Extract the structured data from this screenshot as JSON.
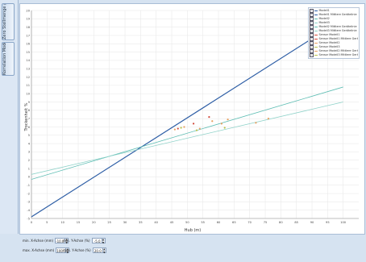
{
  "tabs": [
    {
      "label": "Zero Stellmenge / Trajan Stellmenge"
    },
    {
      "label": "Korrelation Modell 1 / 2"
    }
  ],
  "controls": {
    "x_min": {
      "label": "min. X-Achse (mm)",
      "value": "-10.0"
    },
    "x_max": {
      "label": "max. X-Achse (mm)",
      "value": "100.0"
    },
    "y_min": {
      "label": "min. Y-Achse (%)",
      "value": "-5.0"
    },
    "y_max": {
      "label": "max. Y-Achse (%)",
      "value": "20.0"
    }
  },
  "colors": {
    "model1": "#2f5fa6",
    "model2": "#5dbdb3",
    "model3": "#8fd2c9",
    "sensor_a": "#d24a3c",
    "sensor_b": "#e8a060",
    "sensor_c": "#b9c24c",
    "grid": "#e6e6e6"
  },
  "legend": {
    "items": [
      {
        "label": "Modell1",
        "color": "#2f5fa6"
      },
      {
        "label": "Modell1 Mittlere Gerätelinie",
        "color": "#2f5fa6"
      },
      {
        "label": "Modell2",
        "color": "#5dbdb3"
      },
      {
        "label": "Modell3",
        "color": "#8fd2c9"
      },
      {
        "label": "Modell2 Mittlere Gerätelinie",
        "color": "#5dbdb3"
      },
      {
        "label": "Modell3 Mittlere Gerätelinie",
        "color": "#8fd2c9"
      },
      {
        "label": "Sensor Modell1",
        "color": "#d24a3c"
      },
      {
        "label": "Sensor Modell1 Mittlere Gerätelinie",
        "color": "#d24a3c"
      },
      {
        "label": "Sensor Modell2",
        "color": "#e8a060"
      },
      {
        "label": "Sensor Modell3",
        "color": "#b9c24c"
      },
      {
        "label": "Sensor Modell2 Mittlere Gerätelinie",
        "color": "#e8a060"
      },
      {
        "label": "Sensor Modell3 Mittlere Gerätelinie",
        "color": "#b9c24c"
      }
    ]
  },
  "chart_data": {
    "type": "scatter",
    "xlabel": "Hub (m)",
    "ylabel": "Trockenheit %",
    "xlim": [
      0,
      105
    ],
    "ylim": [
      -5,
      20
    ],
    "x_ticks": [
      0,
      5,
      10,
      15,
      20,
      25,
      30,
      35,
      40,
      45,
      50,
      55,
      60,
      65,
      70,
      75,
      80,
      85,
      90,
      95,
      100
    ],
    "y_ticks": [
      -5,
      -4,
      -3,
      -2,
      -1,
      0,
      1,
      2,
      3,
      4,
      5,
      6,
      7,
      8,
      9,
      10,
      11,
      12,
      13,
      14,
      15,
      16,
      17,
      18,
      19,
      20
    ],
    "grid": true,
    "legend_position": "top-right",
    "series": [
      {
        "name": "Modell1",
        "kind": "line",
        "color": "#2f5fa6",
        "x": [
          0,
          100
        ],
        "y": [
          -4.8,
          19.0
        ]
      },
      {
        "name": "Modell2",
        "kind": "line",
        "color": "#5dbdb3",
        "x": [
          0,
          100
        ],
        "y": [
          -0.3,
          10.8
        ]
      },
      {
        "name": "Modell3",
        "kind": "line",
        "color": "#8fd2c9",
        "x": [
          0,
          100
        ],
        "y": [
          0.3,
          9.0
        ]
      },
      {
        "name": "Sensor Modell1",
        "kind": "points",
        "color": "#d24a3c",
        "x": [
          47,
          52,
          57
        ],
        "y": [
          5.8,
          6.4,
          7.2
        ]
      },
      {
        "name": "Sensor Modell2",
        "kind": "points",
        "color": "#e8a060",
        "x": [
          46,
          49,
          54,
          61,
          63,
          72,
          76,
          58
        ],
        "y": [
          5.7,
          6.0,
          5.8,
          6.4,
          6.9,
          6.5,
          7.0,
          6.7
        ]
      },
      {
        "name": "Sensor Modell3",
        "kind": "points",
        "color": "#b9c24c",
        "x": [
          48,
          53,
          62
        ],
        "y": [
          5.9,
          5.6,
          5.9
        ]
      }
    ]
  }
}
